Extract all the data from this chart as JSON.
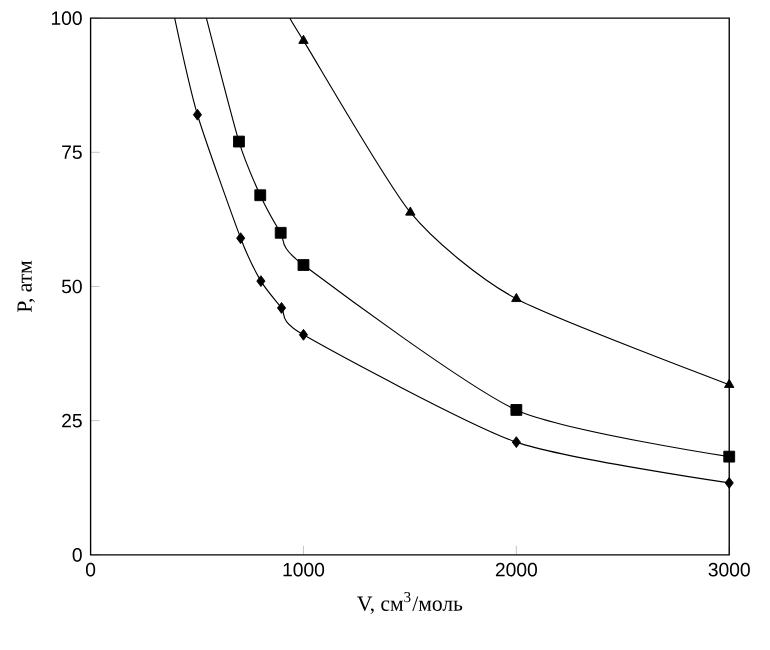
{
  "chart_data": {
    "type": "scatter",
    "xlabel": "V, см$^{3}$/моль",
    "ylabel": "P, атм",
    "xlim": [
      0,
      3000
    ],
    "ylim": [
      0,
      100
    ],
    "xticks": [
      0,
      1000,
      2000,
      3000
    ],
    "yticks": [
      0,
      25,
      50,
      75,
      100
    ],
    "grid": false,
    "series": [
      {
        "type": "line",
        "color": "#000000",
        "marker": "none",
        "x": [
          395,
          502,
          705,
          800,
          897,
          1000,
          2000,
          3000
        ],
        "values": [
          100,
          82,
          59,
          51,
          46,
          41,
          21,
          13.4
        ]
      },
      {
        "type": "line",
        "color": "#000000",
        "marker": "none",
        "x": [
          544,
          697,
          797,
          893,
          1000,
          2000,
          3000
        ],
        "values": [
          100,
          77,
          67,
          60,
          54,
          27,
          18.3
        ]
      },
      {
        "type": "line",
        "color": "#000000",
        "marker": "none",
        "x": [
          936,
          1000,
          1502,
          2000,
          3000
        ],
        "values": [
          100,
          95.8,
          63.8,
          47.7,
          31.7
        ]
      },
      {
        "color": "#000000",
        "marker": "diamond",
        "x": [
          502,
          705,
          800,
          897,
          1000,
          2000,
          3000
        ],
        "values": [
          82,
          59,
          51,
          46,
          41,
          21,
          13.4
        ]
      },
      {
        "color": "#000000",
        "marker": "square",
        "x": [
          697,
          797,
          893,
          1000,
          2000,
          3000
        ],
        "values": [
          77,
          67,
          60,
          54,
          27,
          18.3
        ]
      },
      {
        "color": "#000000",
        "marker": "triangle",
        "x": [
          1000,
          1502,
          2000,
          3000
        ],
        "values": [
          95.8,
          63.8,
          47.7,
          31.7
        ]
      }
    ]
  }
}
